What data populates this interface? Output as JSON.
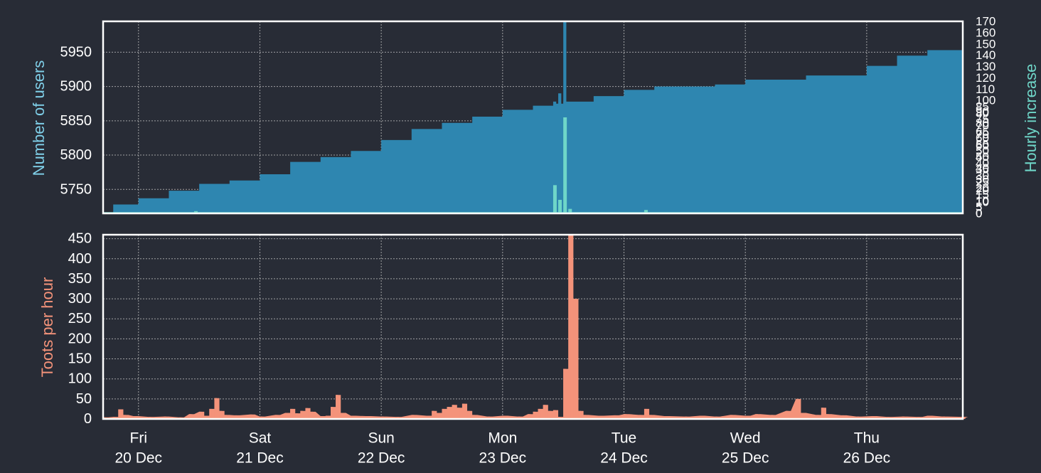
{
  "colors": {
    "background": "#282c36",
    "frame": "#ffffff",
    "grid": "#c8c8c8",
    "text": "#ffffff",
    "users_fill": "#2e86b0",
    "hourly_fill": "#6fd6c8",
    "users_label": "#7fcfe8",
    "hourly_label": "#6fd6c8",
    "toots_fill": "#f4937a",
    "toots_label": "#f4937a"
  },
  "chart_data": [
    {
      "type": "area",
      "ylabel": "Number of users",
      "y2label": "Hourly increase",
      "ylim": [
        5715,
        5995
      ],
      "yticks": [
        5750,
        5800,
        5850,
        5900,
        5950
      ],
      "y2lim": [
        0,
        170
      ],
      "grid": true,
      "x_start": "2019-12-19 17:00",
      "x_end": "2019-12-26 19:00",
      "cumulative_users": {
        "name": "Number of users",
        "points": [
          [
            "2019-12-19 17:00",
            5716
          ],
          [
            "2019-12-19 19:00",
            5728
          ],
          [
            "2019-12-20 00:00",
            5737
          ],
          [
            "2019-12-20 06:00",
            5748
          ],
          [
            "2019-12-20 12:00",
            5758
          ],
          [
            "2019-12-20 18:00",
            5763
          ],
          [
            "2019-12-21 00:00",
            5772
          ],
          [
            "2019-12-21 06:00",
            5790
          ],
          [
            "2019-12-21 12:00",
            5797
          ],
          [
            "2019-12-21 18:00",
            5806
          ],
          [
            "2019-12-22 00:00",
            5822
          ],
          [
            "2019-12-22 06:00",
            5838
          ],
          [
            "2019-12-22 12:00",
            5847
          ],
          [
            "2019-12-22 18:00",
            5856
          ],
          [
            "2019-12-23 00:00",
            5866
          ],
          [
            "2019-12-23 06:00",
            5872
          ],
          [
            "2019-12-23 10:00",
            5875
          ],
          [
            "2019-12-23 12:00",
            5878
          ],
          [
            "2019-12-23 18:00",
            5886
          ],
          [
            "2019-12-24 00:00",
            5895
          ],
          [
            "2019-12-24 06:00",
            5900
          ],
          [
            "2019-12-24 18:00",
            5903
          ],
          [
            "2019-12-25 00:00",
            5910
          ],
          [
            "2019-12-25 12:00",
            5916
          ],
          [
            "2019-12-26 00:00",
            5930
          ],
          [
            "2019-12-26 06:00",
            5945
          ],
          [
            "2019-12-26 12:00",
            5953
          ],
          [
            "2019-12-26 19:00",
            5962
          ]
        ]
      },
      "hourly_increase": {
        "name": "Hourly increase",
        "points": [
          [
            "2019-12-20 11:00",
            2
          ],
          [
            "2019-12-23 10:00",
            25
          ],
          [
            "2019-12-23 11:00",
            12
          ],
          [
            "2019-12-23 12:00",
            85
          ],
          [
            "2019-12-23 13:00",
            4
          ],
          [
            "2019-12-24 04:00",
            3
          ]
        ]
      },
      "user_spike": {
        "points": [
          [
            "2019-12-23 10:00",
            5878
          ],
          [
            "2019-12-23 11:00",
            5890
          ],
          [
            "2019-12-23 12:00",
            5994
          ]
        ]
      }
    },
    {
      "type": "bar",
      "ylabel": "Toots per hour",
      "ylim": [
        0,
        460
      ],
      "yticks": [
        0,
        50,
        100,
        150,
        200,
        250,
        300,
        350,
        400,
        450
      ],
      "grid": true,
      "x_start": "2019-12-19 17:00",
      "x_end": "2019-12-26 19:00",
      "x_ticks": [
        {
          "date": "2019-12-20 00:00",
          "day": "Fri",
          "label": "20 Dec"
        },
        {
          "date": "2019-12-21 00:00",
          "day": "Sat",
          "label": "21 Dec"
        },
        {
          "date": "2019-12-22 00:00",
          "day": "Sun",
          "label": "22 Dec"
        },
        {
          "date": "2019-12-23 00:00",
          "day": "Mon",
          "label": "23 Dec"
        },
        {
          "date": "2019-12-24 00:00",
          "day": "Tue",
          "label": "24 Dec"
        },
        {
          "date": "2019-12-25 00:00",
          "day": "Wed",
          "label": "25 Dec"
        },
        {
          "date": "2019-12-26 00:00",
          "day": "Thu",
          "label": "26 Dec"
        }
      ],
      "toots_per_hour": {
        "name": "Toots per hour",
        "points": [
          [
            "2019-12-19 17:00",
            4
          ],
          [
            "2019-12-19 19:00",
            5
          ],
          [
            "2019-12-19 20:00",
            24
          ],
          [
            "2019-12-19 21:00",
            10
          ],
          [
            "2019-12-19 23:00",
            7
          ],
          [
            "2019-12-20 02:00",
            5
          ],
          [
            "2019-12-20 05:00",
            6
          ],
          [
            "2019-12-20 08:00",
            4
          ],
          [
            "2019-12-20 10:00",
            12
          ],
          [
            "2019-12-20 12:00",
            18
          ],
          [
            "2019-12-20 13:00",
            8
          ],
          [
            "2019-12-20 14:00",
            25
          ],
          [
            "2019-12-20 15:00",
            52
          ],
          [
            "2019-12-20 16:00",
            20
          ],
          [
            "2019-12-20 17:00",
            10
          ],
          [
            "2019-12-20 19:00",
            9
          ],
          [
            "2019-12-20 22:00",
            11
          ],
          [
            "2019-12-21 00:00",
            6
          ],
          [
            "2019-12-21 03:00",
            10
          ],
          [
            "2019-12-21 05:00",
            15
          ],
          [
            "2019-12-21 06:00",
            25
          ],
          [
            "2019-12-21 07:00",
            14
          ],
          [
            "2019-12-21 08:00",
            20
          ],
          [
            "2019-12-21 09:00",
            27
          ],
          [
            "2019-12-21 10:00",
            18
          ],
          [
            "2019-12-21 12:00",
            7
          ],
          [
            "2019-12-21 13:00",
            8
          ],
          [
            "2019-12-21 14:00",
            30
          ],
          [
            "2019-12-21 15:00",
            60
          ],
          [
            "2019-12-21 16:00",
            15
          ],
          [
            "2019-12-21 18:00",
            8
          ],
          [
            "2019-12-21 21:00",
            7
          ],
          [
            "2019-12-22 00:00",
            6
          ],
          [
            "2019-12-22 03:00",
            5
          ],
          [
            "2019-12-22 06:00",
            10
          ],
          [
            "2019-12-22 09:00",
            8
          ],
          [
            "2019-12-22 10:00",
            20
          ],
          [
            "2019-12-22 11:00",
            15
          ],
          [
            "2019-12-22 12:00",
            25
          ],
          [
            "2019-12-22 13:00",
            30
          ],
          [
            "2019-12-22 14:00",
            35
          ],
          [
            "2019-12-22 15:00",
            28
          ],
          [
            "2019-12-22 16:00",
            38
          ],
          [
            "2019-12-22 17:00",
            20
          ],
          [
            "2019-12-22 18:00",
            10
          ],
          [
            "2019-12-22 21:00",
            6
          ],
          [
            "2019-12-23 00:00",
            8
          ],
          [
            "2019-12-23 03:00",
            6
          ],
          [
            "2019-12-23 05:00",
            12
          ],
          [
            "2019-12-23 06:00",
            18
          ],
          [
            "2019-12-23 07:00",
            25
          ],
          [
            "2019-12-23 08:00",
            35
          ],
          [
            "2019-12-23 09:00",
            20
          ],
          [
            "2019-12-23 10:00",
            22
          ],
          [
            "2019-12-23 11:00",
            5
          ],
          [
            "2019-12-23 12:00",
            125
          ],
          [
            "2019-12-23 13:00",
            460
          ],
          [
            "2019-12-23 14:00",
            300
          ],
          [
            "2019-12-23 15:00",
            20
          ],
          [
            "2019-12-23 16:00",
            10
          ],
          [
            "2019-12-23 19:00",
            8
          ],
          [
            "2019-12-23 22:00",
            9
          ],
          [
            "2019-12-24 00:00",
            12
          ],
          [
            "2019-12-24 03:00",
            10
          ],
          [
            "2019-12-24 04:00",
            25
          ],
          [
            "2019-12-24 05:00",
            10
          ],
          [
            "2019-12-24 08:00",
            7
          ],
          [
            "2019-12-24 12:00",
            6
          ],
          [
            "2019-12-24 15:00",
            8
          ],
          [
            "2019-12-24 18:00",
            6
          ],
          [
            "2019-12-24 21:00",
            10
          ],
          [
            "2019-12-25 00:00",
            8
          ],
          [
            "2019-12-25 02:00",
            12
          ],
          [
            "2019-12-25 05:00",
            10
          ],
          [
            "2019-12-25 08:00",
            20
          ],
          [
            "2019-12-25 10:00",
            50
          ],
          [
            "2019-12-25 11:00",
            15
          ],
          [
            "2019-12-25 14:00",
            10
          ],
          [
            "2019-12-25 15:00",
            28
          ],
          [
            "2019-12-25 16:00",
            12
          ],
          [
            "2019-12-25 19:00",
            9
          ],
          [
            "2019-12-25 22:00",
            6
          ],
          [
            "2019-12-26 01:00",
            7
          ],
          [
            "2019-12-26 04:00",
            5
          ],
          [
            "2019-12-26 07:00",
            6
          ],
          [
            "2019-12-26 10:00",
            5
          ],
          [
            "2019-12-26 12:00",
            8
          ],
          [
            "2019-12-26 15:00",
            6
          ],
          [
            "2019-12-26 19:00",
            5
          ]
        ]
      }
    }
  ]
}
